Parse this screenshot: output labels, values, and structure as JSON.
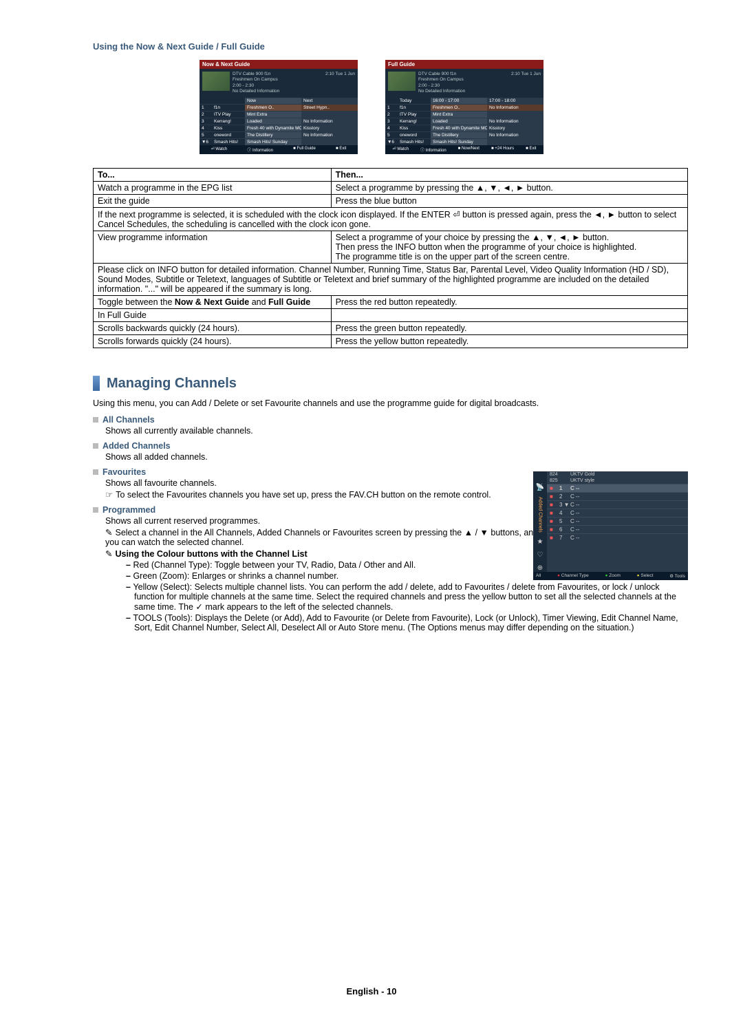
{
  "section_title": "Using the Now & Next Guide / Full Guide",
  "guide1": {
    "title": "Now & Next Guide",
    "info": [
      "DTV Cable 900 f1n",
      "Freshmen On Campus",
      "2:00 - 2:30",
      "No Detailed Information"
    ],
    "time": "2:10  Tue 1 Jun",
    "headers": [
      "",
      "",
      "Now",
      "Next"
    ],
    "rows": [
      {
        "n": "1",
        "ch": "f1n",
        "a": "Freshmen O..",
        "b": "Street Hypn..",
        "hl": true
      },
      {
        "n": "2",
        "ch": "ITV Play",
        "a": "Mint Extra",
        "b": ""
      },
      {
        "n": "3",
        "ch": "Kerrang!",
        "a": "Loaded",
        "b": "No Information"
      },
      {
        "n": "4",
        "ch": "Kiss",
        "a": "Fresh 40 with Dynamite MC",
        "b": "Kisstory"
      },
      {
        "n": "5",
        "ch": "oneword",
        "a": "The Distillery",
        "b": "No Information"
      },
      {
        "n": "▼6",
        "ch": "Smash Hits!",
        "a": "Smash Hits! Sunday",
        "b": ""
      }
    ],
    "footer": [
      "Watch",
      "Information",
      "Full Guide",
      "Exit"
    ]
  },
  "guide2": {
    "title": "Full Guide",
    "info": [
      "DTV Cable 900 f1n",
      "Freshmen On Campus",
      "2:00 - 2:30",
      "No Detailed Information"
    ],
    "time": "2:10  Tue 1 Jun",
    "headers": [
      "",
      "Today",
      "16:00 - 17:00",
      "17:00 - 18:00"
    ],
    "rows": [
      {
        "n": "1",
        "ch": "f1n",
        "a": "Freshmen O..",
        "b": "No Information",
        "hl": true
      },
      {
        "n": "2",
        "ch": "ITV Play",
        "a": "Mint Extra",
        "b": ""
      },
      {
        "n": "3",
        "ch": "Kerrang!",
        "a": "Loaded",
        "b": "No Information"
      },
      {
        "n": "4",
        "ch": "Kiss",
        "a": "Fresh 40 with Dynamite MC",
        "b": "Kisstory"
      },
      {
        "n": "5",
        "ch": "oneword",
        "a": "The Distillery",
        "b": "No Information"
      },
      {
        "n": "▼6",
        "ch": "Smash Hits!",
        "a": "Smash Hits! Sunday",
        "b": ""
      }
    ],
    "footer": [
      "Watch",
      "Information",
      "Now/Next",
      "+24 Hours",
      "Exit"
    ]
  },
  "table": {
    "h1": "To...",
    "h2": "Then...",
    "r1a": "Watch a programme in the EPG list",
    "r1b": "Select a programme by pressing the ▲, ▼, ◄, ► button.",
    "r2a": "Exit the guide",
    "r2b": "Press the blue button",
    "r3": "If the next programme is selected, it is scheduled with the clock icon displayed. If the ENTER ⏎ button is pressed again, press the ◄, ► button to select Cancel Schedules, the scheduling is cancelled with the clock icon gone.",
    "r4a": "View programme information",
    "r4b": "Select a programme of your choice by pressing the ▲, ▼, ◄, ► button.\nThen press the INFO button when the programme of your choice is highlighted.\nThe programme title is on the upper part of the screen centre.",
    "r5": "Please click on INFO button for detailed information. Channel Number, Running Time, Status Bar, Parental Level, Video Quality Information (HD / SD), Sound Modes, Subtitle or Teletext, languages of Subtitle or Teletext and brief summary of the highlighted programme are included on the detailed information. \"...\" will be appeared if the summary is long.",
    "r6a": "Toggle between the Now & Next Guide and Full Guide",
    "r6b": "Press the red button repeatedly.",
    "r7a": "In Full Guide",
    "r7b": "",
    "r8a": "Scrolls backwards quickly (24 hours).",
    "r8b": "Press the green button repeatedly.",
    "r9a": "Scrolls forwards quickly (24 hours).",
    "r9b": "Press the yellow button repeatedly."
  },
  "managing": {
    "title": "Managing Channels",
    "intro": "Using this menu, you can Add / Delete or set Favourite channels and use the programme guide for digital broadcasts.",
    "all_t": "All Channels",
    "all_b": "Shows all currently available channels.",
    "added_t": "Added Channels",
    "added_b": "Shows all added channels.",
    "fav_t": "Favourites",
    "fav_b": "Shows all favourite channels.",
    "fav_note": "To select the Favourites channels you have set up, press the FAV.CH button on the remote control.",
    "prog_t": "Programmed",
    "prog_b": "Shows all current reserved programmes.",
    "prog_n1": "Select a channel in the All Channels, Added Channels or Favourites screen by pressing the ▲ / ▼ buttons, and pressing the ENTER ⏎ button. Then you can watch the selected channel.",
    "prog_n2": "Using the Colour buttons with the Channel List",
    "d1": "Red (Channel Type): Toggle between your TV, Radio, Data / Other and All.",
    "d2": "Green (Zoom): Enlarges or shrinks a channel number.",
    "d3": "Yellow (Select): Selects multiple channel lists. You can perform the add / delete, add to Favourites / delete from Favourites, or lock / unlock function for multiple channels at the same time. Select the required channels and press the yellow button to set all the selected channels at the same time. The ✓ mark appears to the left of the selected channels.",
    "d4": "TOOLS (Tools): Displays the Delete (or Add), Add to Favourite (or Delete from Favourite), Lock (or Unlock), Timer Viewing, Edit Channel Name, Sort, Edit Channel Number, Select All, Deselect All or Auto Store menu. (The Options menus may differ depending on the situation.)"
  },
  "chbox": {
    "top": [
      {
        "n": "824",
        "name": "UKTV Gold"
      },
      {
        "n": "825",
        "name": "UKTV style"
      }
    ],
    "rows": [
      {
        "n": "1",
        "name": "C --",
        "sel": true
      },
      {
        "n": "2",
        "name": "C --"
      },
      {
        "n": "3  ▼",
        "name": "C --"
      },
      {
        "n": "4",
        "name": "C --"
      },
      {
        "n": "5",
        "name": "C --"
      },
      {
        "n": "6",
        "name": "C --"
      },
      {
        "n": "7",
        "name": "C --"
      }
    ],
    "footer_all": "All",
    "footer": [
      "Channel Type",
      "Zoom",
      "Select",
      "Tools"
    ]
  },
  "page_footer": "English - 10"
}
